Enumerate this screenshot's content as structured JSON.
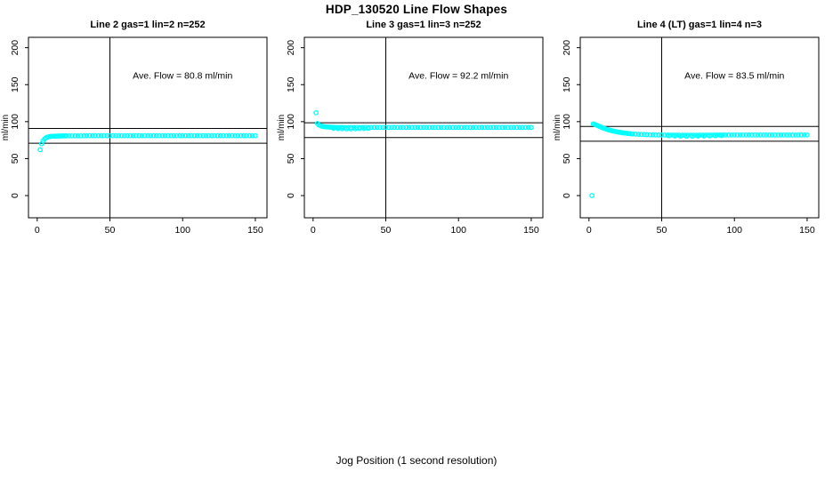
{
  "title": "HDP_130520  Line Flow Shapes",
  "xlabel": "Jog Position (1 second resolution)",
  "colors": {
    "points": "#00FFFF",
    "lines": "#000000",
    "background": "#FFFFFF"
  },
  "chart_data": [
    {
      "type": "scatter",
      "title": "Line 2 gas=1 lin=2 n=252",
      "annotation": "Ave. Flow =  80.8  ml/min",
      "ave_flow_ml_min": 80.8,
      "ylabel": "ml/min",
      "xlim": [
        -6,
        158
      ],
      "ylim": [
        -30,
        214
      ],
      "xticks": [
        0,
        50,
        100,
        150
      ],
      "yticks": [
        0,
        50,
        100,
        150,
        200
      ],
      "vline_x": 50,
      "hlines": [
        90.8,
        70.8
      ],
      "points": [
        [
          2,
          62
        ],
        [
          3,
          70
        ],
        [
          4,
          74
        ],
        [
          5,
          76.5
        ],
        [
          6,
          78
        ],
        [
          7,
          79
        ],
        [
          8,
          79.6
        ],
        [
          9,
          80
        ],
        [
          10,
          80.2
        ],
        [
          11,
          80.3
        ],
        [
          12,
          80.4
        ],
        [
          13,
          80.5
        ],
        [
          14,
          80.5
        ],
        [
          15,
          80.6
        ],
        [
          16,
          80.6
        ],
        [
          17,
          80.7
        ],
        [
          18,
          80.7
        ],
        [
          19,
          80.7
        ],
        [
          20,
          80.8
        ],
        [
          22,
          80.8
        ],
        [
          24,
          80.8
        ],
        [
          26,
          80.8
        ],
        [
          28,
          80.8
        ],
        [
          30,
          80.8
        ],
        [
          32,
          80.8
        ],
        [
          34,
          80.9
        ],
        [
          36,
          80.9
        ],
        [
          38,
          80.9
        ],
        [
          40,
          80.9
        ],
        [
          42,
          80.9
        ],
        [
          44,
          80.9
        ],
        [
          46,
          80.9
        ],
        [
          48,
          80.9
        ],
        [
          50,
          80.9
        ],
        [
          52,
          80.9
        ],
        [
          54,
          81
        ],
        [
          56,
          81
        ],
        [
          58,
          81
        ],
        [
          60,
          81
        ],
        [
          62,
          81
        ],
        [
          64,
          81
        ],
        [
          66,
          81
        ],
        [
          68,
          81
        ],
        [
          70,
          81
        ],
        [
          72,
          81
        ],
        [
          74,
          81
        ],
        [
          76,
          81
        ],
        [
          78,
          81
        ],
        [
          80,
          81
        ],
        [
          82,
          81
        ],
        [
          84,
          81
        ],
        [
          86,
          81
        ],
        [
          88,
          81
        ],
        [
          90,
          81
        ],
        [
          92,
          81
        ],
        [
          94,
          81
        ],
        [
          96,
          81
        ],
        [
          98,
          81
        ],
        [
          100,
          81
        ],
        [
          102,
          81
        ],
        [
          104,
          81
        ],
        [
          106,
          81
        ],
        [
          108,
          81
        ],
        [
          110,
          81
        ],
        [
          112,
          81
        ],
        [
          114,
          81
        ],
        [
          116,
          81
        ],
        [
          118,
          81
        ],
        [
          120,
          81
        ],
        [
          122,
          81
        ],
        [
          124,
          81
        ],
        [
          126,
          81
        ],
        [
          128,
          81
        ],
        [
          130,
          81
        ],
        [
          132,
          81
        ],
        [
          134,
          81
        ],
        [
          136,
          81
        ],
        [
          138,
          81
        ],
        [
          140,
          81
        ],
        [
          142,
          81
        ],
        [
          144,
          81
        ],
        [
          146,
          81
        ],
        [
          148,
          81
        ],
        [
          150,
          81
        ]
      ]
    },
    {
      "type": "scatter",
      "title": "Line 3 gas=1 lin=3 n=252",
      "annotation": "Ave. Flow =  92.2  ml/min",
      "ave_flow_ml_min": 92.2,
      "ylabel": "ml/min",
      "xlim": [
        -6,
        158
      ],
      "ylim": [
        -30,
        214
      ],
      "xticks": [
        0,
        50,
        100,
        150
      ],
      "yticks": [
        0,
        50,
        100,
        150,
        200
      ],
      "vline_x": 50,
      "hlines": [
        98.5,
        78.5
      ],
      "points": [
        [
          2,
          112
        ],
        [
          3,
          97.5
        ],
        [
          4,
          95.5
        ],
        [
          5,
          94.5
        ],
        [
          6,
          93.8
        ],
        [
          7,
          93.4
        ],
        [
          8,
          93.1
        ],
        [
          9,
          92.9
        ],
        [
          10,
          92.7
        ],
        [
          11,
          92.6
        ],
        [
          12,
          92.5
        ],
        [
          13,
          92.4
        ],
        [
          14,
          92.4
        ],
        [
          15,
          92.3
        ],
        [
          16,
          92.3
        ],
        [
          17,
          92.3
        ],
        [
          18,
          92.2
        ],
        [
          19,
          92.2
        ],
        [
          20,
          92.2
        ],
        [
          22,
          92.2
        ],
        [
          24,
          92.2
        ],
        [
          26,
          92.2
        ],
        [
          28,
          92.2
        ],
        [
          30,
          92.2
        ],
        [
          32,
          92.2
        ],
        [
          34,
          92.2
        ],
        [
          36,
          92.2
        ],
        [
          38,
          92.2
        ],
        [
          40,
          92.2
        ],
        [
          42,
          92.2
        ],
        [
          44,
          92.2
        ],
        [
          46,
          92.2
        ],
        [
          48,
          92.2
        ],
        [
          50,
          92.2
        ],
        [
          52,
          92.2
        ],
        [
          54,
          92.2
        ],
        [
          56,
          92.2
        ],
        [
          58,
          92.2
        ],
        [
          60,
          92.2
        ],
        [
          62,
          92.2
        ],
        [
          64,
          92.2
        ],
        [
          66,
          92.2
        ],
        [
          68,
          92.2
        ],
        [
          70,
          92.2
        ],
        [
          72,
          92.2
        ],
        [
          74,
          92.2
        ],
        [
          76,
          92.2
        ],
        [
          78,
          92.2
        ],
        [
          80,
          92.2
        ],
        [
          82,
          92.2
        ],
        [
          84,
          92.2
        ],
        [
          86,
          92.2
        ],
        [
          88,
          92.2
        ],
        [
          90,
          92.2
        ],
        [
          92,
          92.2
        ],
        [
          94,
          92.2
        ],
        [
          96,
          92.2
        ],
        [
          98,
          92.2
        ],
        [
          100,
          92.2
        ],
        [
          102,
          92.2
        ],
        [
          104,
          92.2
        ],
        [
          106,
          92.2
        ],
        [
          108,
          92.2
        ],
        [
          110,
          92.2
        ],
        [
          112,
          92.2
        ],
        [
          114,
          92.2
        ],
        [
          116,
          92.2
        ],
        [
          118,
          92.2
        ],
        [
          120,
          92.2
        ],
        [
          122,
          92.2
        ],
        [
          124,
          92.2
        ],
        [
          126,
          92.2
        ],
        [
          128,
          92.2
        ],
        [
          130,
          92.2
        ],
        [
          132,
          92.2
        ],
        [
          134,
          92.2
        ],
        [
          136,
          92.2
        ],
        [
          138,
          92.2
        ],
        [
          140,
          92.2
        ],
        [
          142,
          92.2
        ],
        [
          144,
          92.2
        ],
        [
          146,
          92.2
        ],
        [
          148,
          92.2
        ],
        [
          150,
          92.2
        ],
        [
          14,
          90.9
        ],
        [
          17,
          90.6
        ],
        [
          20,
          90.4
        ],
        [
          23,
          90.3
        ],
        [
          26,
          90.2
        ],
        [
          29,
          90.3
        ],
        [
          32,
          90.5
        ],
        [
          35,
          90.7
        ],
        [
          38,
          91
        ]
      ]
    },
    {
      "type": "scatter",
      "title": "Line 4 (LT) gas=1 lin=4 n=3",
      "annotation": "Ave. Flow =  83.5  ml/min",
      "ave_flow_ml_min": 83.5,
      "ylabel": "ml/min",
      "xlim": [
        -6,
        158
      ],
      "ylim": [
        -30,
        214
      ],
      "xticks": [
        0,
        50,
        100,
        150
      ],
      "yticks": [
        0,
        50,
        100,
        150,
        200
      ],
      "vline_x": 50,
      "hlines": [
        93.5,
        73.5
      ],
      "points": [
        [
          2,
          0
        ],
        [
          3,
          97
        ],
        [
          4,
          96.3
        ],
        [
          5,
          95.5
        ],
        [
          6,
          94.6
        ],
        [
          7,
          93.7
        ],
        [
          8,
          92.8
        ],
        [
          9,
          92
        ],
        [
          10,
          91.2
        ],
        [
          11,
          90.5
        ],
        [
          12,
          89.8
        ],
        [
          13,
          89.2
        ],
        [
          14,
          88.6
        ],
        [
          15,
          88.1
        ],
        [
          16,
          87.6
        ],
        [
          17,
          87.1
        ],
        [
          18,
          86.7
        ],
        [
          19,
          86.3
        ],
        [
          20,
          85.9
        ],
        [
          21,
          85.6
        ],
        [
          22,
          85.3
        ],
        [
          23,
          85
        ],
        [
          24,
          84.7
        ],
        [
          25,
          84.5
        ],
        [
          26,
          84.2
        ],
        [
          27,
          84
        ],
        [
          28,
          83.8
        ],
        [
          29,
          83.6
        ],
        [
          30,
          83.4
        ],
        [
          32,
          83.1
        ],
        [
          34,
          82.9
        ],
        [
          36,
          82.7
        ],
        [
          38,
          82.5
        ],
        [
          40,
          82.4
        ],
        [
          42,
          82.2
        ],
        [
          44,
          82.1
        ],
        [
          46,
          82
        ],
        [
          48,
          82
        ],
        [
          50,
          81.9
        ],
        [
          52,
          81.9
        ],
        [
          54,
          81.8
        ],
        [
          56,
          81.8
        ],
        [
          58,
          81.8
        ],
        [
          60,
          81.8
        ],
        [
          62,
          81.7
        ],
        [
          64,
          81.7
        ],
        [
          66,
          81.7
        ],
        [
          68,
          81.7
        ],
        [
          70,
          81.7
        ],
        [
          72,
          81.7
        ],
        [
          74,
          81.7
        ],
        [
          76,
          81.8
        ],
        [
          78,
          81.8
        ],
        [
          80,
          81.8
        ],
        [
          82,
          81.8
        ],
        [
          84,
          81.8
        ],
        [
          86,
          81.8
        ],
        [
          88,
          81.9
        ],
        [
          90,
          81.9
        ],
        [
          92,
          81.9
        ],
        [
          94,
          81.9
        ],
        [
          96,
          81.9
        ],
        [
          98,
          81.9
        ],
        [
          100,
          81.9
        ],
        [
          102,
          81.9
        ],
        [
          104,
          81.9
        ],
        [
          106,
          81.9
        ],
        [
          108,
          81.9
        ],
        [
          110,
          81.9
        ],
        [
          112,
          81.9
        ],
        [
          114,
          81.9
        ],
        [
          116,
          81.9
        ],
        [
          118,
          81.9
        ],
        [
          120,
          81.9
        ],
        [
          122,
          81.9
        ],
        [
          124,
          81.9
        ],
        [
          126,
          81.9
        ],
        [
          128,
          81.9
        ],
        [
          130,
          81.9
        ],
        [
          132,
          81.9
        ],
        [
          134,
          81.9
        ],
        [
          136,
          81.9
        ],
        [
          138,
          81.9
        ],
        [
          140,
          81.9
        ],
        [
          142,
          81.9
        ],
        [
          144,
          81.9
        ],
        [
          146,
          81.9
        ],
        [
          148,
          81.9
        ],
        [
          150,
          81.9
        ],
        [
          55,
          80.9
        ],
        [
          59,
          80.6
        ],
        [
          63,
          80.5
        ],
        [
          67,
          80.4
        ],
        [
          71,
          80.4
        ],
        [
          75,
          80.5
        ],
        [
          79,
          80.6
        ],
        [
          83,
          80.8
        ],
        [
          87,
          81
        ],
        [
          91,
          81.2
        ]
      ]
    }
  ]
}
